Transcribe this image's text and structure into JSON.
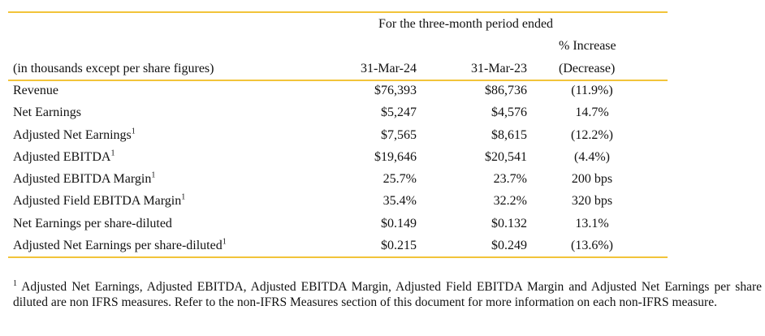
{
  "header": {
    "period_caption": "For the three-month period ended",
    "units_caption": "(in thousands except per share figures)",
    "col1": "31-Mar-24",
    "col2": "31-Mar-23",
    "col3_line1": "% Increase",
    "col3_line2": "(Decrease)"
  },
  "rows": [
    {
      "label": "Revenue",
      "sup": "",
      "v2024": "$76,393",
      "v2023": "$86,736",
      "change": "(11.9%)"
    },
    {
      "label": "Net Earnings",
      "sup": "",
      "v2024": "$5,247",
      "v2023": "$4,576",
      "change": "14.7%"
    },
    {
      "label": "Adjusted Net Earnings",
      "sup": "1",
      "v2024": "$7,565",
      "v2023": "$8,615",
      "change": "(12.2%)"
    },
    {
      "label": "Adjusted EBITDA",
      "sup": "1",
      "v2024": "$19,646",
      "v2023": "$20,541",
      "change": "(4.4%)"
    },
    {
      "label": "Adjusted EBITDA Margin",
      "sup": "1",
      "v2024": "25.7%",
      "v2023": "23.7%",
      "change": "200 bps"
    },
    {
      "label": "Adjusted Field EBITDA Margin",
      "sup": "1",
      "v2024": "35.4%",
      "v2023": "32.2%",
      "change": "320 bps"
    },
    {
      "label": "Net Earnings per share-diluted",
      "sup": "",
      "v2024": "$0.149",
      "v2023": "$0.132",
      "change": "13.1%"
    },
    {
      "label": "Adjusted Net Earnings per share-diluted",
      "sup": "1",
      "v2024": "$0.215",
      "v2023": "$0.249",
      "change": "(13.6%)"
    }
  ],
  "footnote": {
    "marker": "1",
    "text": "Adjusted Net Earnings, Adjusted EBITDA, Adjusted EBITDA Margin, Adjusted Field EBITDA Margin and Adjusted Net Earnings per share diluted are non IFRS measures.  Refer to the non-IFRS Measures section of this document for more information on each non-IFRS measure."
  },
  "colors": {
    "rule": "#f2c43a",
    "text": "#111111"
  }
}
